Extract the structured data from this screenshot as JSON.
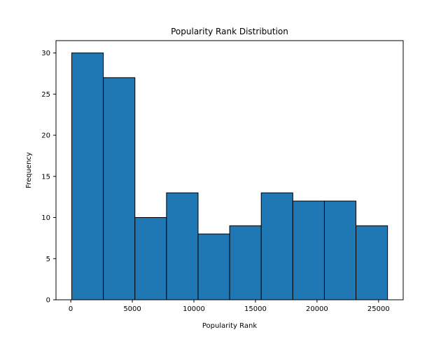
{
  "chart_data": {
    "type": "bar",
    "title": "Popularity Rank Distribution",
    "xlabel": "Popularity Rank",
    "ylabel": "Frequency",
    "bins": [
      {
        "start": 80,
        "end": 2645,
        "value": 30
      },
      {
        "start": 2645,
        "end": 5210,
        "value": 27
      },
      {
        "start": 5210,
        "end": 7775,
        "value": 10
      },
      {
        "start": 7775,
        "end": 10340,
        "value": 13
      },
      {
        "start": 10340,
        "end": 12905,
        "value": 8
      },
      {
        "start": 12905,
        "end": 15470,
        "value": 9
      },
      {
        "start": 15470,
        "end": 18035,
        "value": 13
      },
      {
        "start": 18035,
        "end": 20600,
        "value": 12
      },
      {
        "start": 20600,
        "end": 23165,
        "value": 12
      },
      {
        "start": 23165,
        "end": 25730,
        "value": 9
      }
    ],
    "xlim": [
      -1200,
      27000
    ],
    "ylim": [
      0,
      31.5
    ],
    "xticks": [
      0,
      5000,
      10000,
      15000,
      20000,
      25000
    ],
    "xtick_labels": [
      "0",
      "5000",
      "10000",
      "15000",
      "20000",
      "25000"
    ],
    "yticks": [
      0,
      5,
      10,
      15,
      20,
      25,
      30
    ],
    "ytick_labels": [
      "0",
      "5",
      "10",
      "15",
      "20",
      "25",
      "30"
    ],
    "grid": false,
    "bar_color": "#1f77b4",
    "edge_color": "#000000"
  }
}
